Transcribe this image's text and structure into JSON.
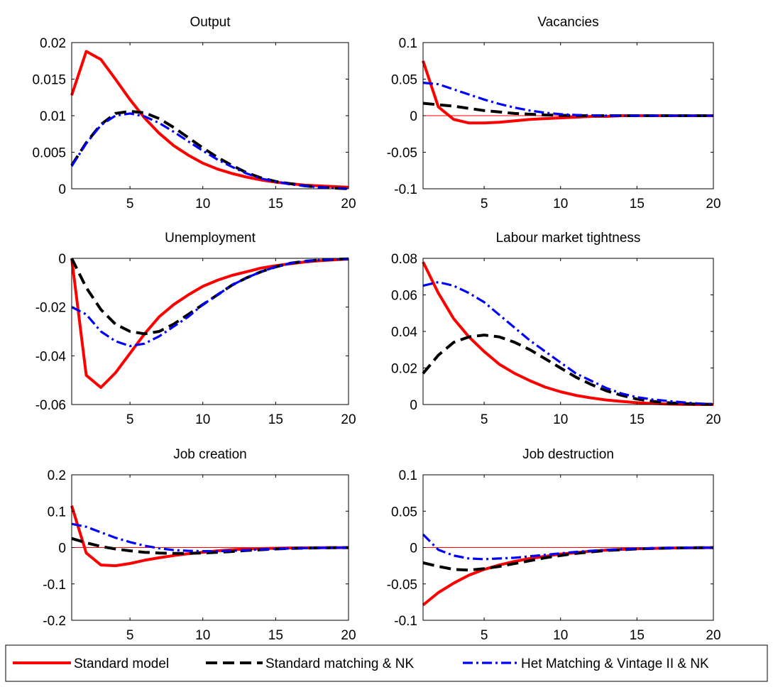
{
  "chart_data": [
    {
      "type": "line",
      "title": "Output",
      "xlim": [
        1,
        20
      ],
      "ylim": [
        0,
        0.02
      ],
      "xticks": [
        5,
        10,
        15,
        20
      ],
      "xtick_labels": [
        "5",
        "10",
        "15",
        "20"
      ],
      "yticks": [
        0,
        0.005,
        0.01,
        0.015,
        0.02
      ],
      "ytick_labels": [
        "0",
        "0.005",
        "0.01",
        "0.015",
        "0.02"
      ],
      "x": [
        1,
        2,
        3,
        4,
        5,
        6,
        7,
        8,
        9,
        10,
        11,
        12,
        13,
        14,
        15,
        16,
        17,
        18,
        19,
        20
      ],
      "series": [
        {
          "name": "Standard model",
          "values": [
            0.0128,
            0.0188,
            0.0177,
            0.015,
            0.0122,
            0.0097,
            0.0076,
            0.0059,
            0.0046,
            0.0035,
            0.0027,
            0.0021,
            0.0016,
            0.0012,
            0.0009,
            0.0007,
            0.0005,
            0.0004,
            0.0003,
            0.0002
          ]
        },
        {
          "name": "Standard matching & NK",
          "values": [
            0.0032,
            0.0063,
            0.0088,
            0.0103,
            0.0106,
            0.0104,
            0.0096,
            0.0084,
            0.007,
            0.0056,
            0.0043,
            0.0032,
            0.0022,
            0.0015,
            0.001,
            0.0007,
            0.0004,
            0.0002,
            0.0001,
            0.0
          ]
        },
        {
          "name": "Het Matching & Vintage II & NK",
          "values": [
            0.0031,
            0.0062,
            0.0087,
            0.01,
            0.0103,
            0.0099,
            0.009,
            0.0078,
            0.0065,
            0.0052,
            0.004,
            0.003,
            0.0021,
            0.0014,
            0.001,
            0.0006,
            0.0004,
            0.0002,
            0.0001,
            0.0
          ]
        }
      ]
    },
    {
      "type": "line",
      "title": "Vacancies",
      "xlim": [
        1,
        20
      ],
      "ylim": [
        -0.1,
        0.1
      ],
      "xticks": [
        5,
        10,
        15,
        20
      ],
      "xtick_labels": [
        "5",
        "10",
        "15",
        "20"
      ],
      "yticks": [
        -0.1,
        -0.05,
        0,
        0.05,
        0.1
      ],
      "ytick_labels": [
        "-0.1",
        "-0.05",
        "0",
        "0.05",
        "0.1"
      ],
      "x": [
        1,
        2,
        3,
        4,
        5,
        6,
        7,
        8,
        9,
        10,
        11,
        12,
        13,
        14,
        15,
        16,
        17,
        18,
        19,
        20
      ],
      "series": [
        {
          "name": "Standard model",
          "values": [
            0.075,
            0.012,
            -0.005,
            -0.01,
            -0.01,
            -0.009,
            -0.007,
            -0.005,
            -0.004,
            -0.003,
            -0.002,
            -0.001,
            -0.001,
            0,
            0,
            0,
            0,
            0,
            0,
            0
          ]
        },
        {
          "name": "Standard matching & NK",
          "values": [
            0.017,
            0.015,
            0.013,
            0.01,
            0.007,
            0.005,
            0.003,
            0.002,
            0.001,
            0.0005,
            0,
            0,
            0,
            0,
            0,
            0,
            0,
            0,
            0,
            0
          ]
        },
        {
          "name": "Het Matching & Vintage II & NK",
          "values": [
            0.045,
            0.043,
            0.036,
            0.029,
            0.022,
            0.016,
            0.011,
            0.007,
            0.004,
            0.002,
            0.001,
            0.0005,
            0,
            0,
            0,
            0,
            0,
            0,
            0,
            0
          ]
        }
      ]
    },
    {
      "type": "line",
      "title": "Unemployment",
      "xlim": [
        1,
        20
      ],
      "ylim": [
        -0.06,
        0
      ],
      "xticks": [
        5,
        10,
        15,
        20
      ],
      "xtick_labels": [
        "5",
        "10",
        "15",
        "20"
      ],
      "yticks": [
        -0.06,
        -0.04,
        -0.02,
        0
      ],
      "ytick_labels": [
        "-0.06",
        "-0.04",
        "-0.02",
        "0"
      ],
      "x": [
        1,
        2,
        3,
        4,
        5,
        6,
        7,
        8,
        9,
        10,
        11,
        12,
        13,
        14,
        15,
        16,
        17,
        18,
        19,
        20
      ],
      "series": [
        {
          "name": "Standard model",
          "values": [
            0,
            -0.048,
            -0.053,
            -0.047,
            -0.039,
            -0.031,
            -0.024,
            -0.019,
            -0.015,
            -0.0115,
            -0.009,
            -0.007,
            -0.0055,
            -0.004,
            -0.003,
            -0.0022,
            -0.0015,
            -0.001,
            -0.0006,
            -0.0003
          ]
        },
        {
          "name": "Standard matching & NK",
          "values": [
            0,
            -0.012,
            -0.021,
            -0.027,
            -0.03,
            -0.031,
            -0.03,
            -0.027,
            -0.023,
            -0.019,
            -0.015,
            -0.011,
            -0.008,
            -0.0055,
            -0.0035,
            -0.002,
            -0.0012,
            -0.0007,
            -0.0004,
            -0.0002
          ]
        },
        {
          "name": "Het Matching & Vintage II & NK",
          "values": [
            -0.02,
            -0.023,
            -0.03,
            -0.034,
            -0.036,
            -0.035,
            -0.032,
            -0.028,
            -0.024,
            -0.019,
            -0.015,
            -0.011,
            -0.008,
            -0.0055,
            -0.0035,
            -0.002,
            -0.0012,
            -0.0007,
            -0.0004,
            -0.0002
          ]
        }
      ]
    },
    {
      "type": "line",
      "title": "Labour market tightness",
      "xlim": [
        1,
        20
      ],
      "ylim": [
        0,
        0.08
      ],
      "xticks": [
        5,
        10,
        15,
        20
      ],
      "xtick_labels": [
        "5",
        "10",
        "15",
        "20"
      ],
      "yticks": [
        0,
        0.02,
        0.04,
        0.06,
        0.08
      ],
      "ytick_labels": [
        "0",
        "0.02",
        "0.04",
        "0.06",
        "0.08"
      ],
      "x": [
        1,
        2,
        3,
        4,
        5,
        6,
        7,
        8,
        9,
        10,
        11,
        12,
        13,
        14,
        15,
        16,
        17,
        18,
        19,
        20
      ],
      "series": [
        {
          "name": "Standard model",
          "values": [
            0.078,
            0.061,
            0.047,
            0.037,
            0.029,
            0.022,
            0.017,
            0.013,
            0.0095,
            0.007,
            0.005,
            0.0036,
            0.0025,
            0.0017,
            0.001,
            0.0006,
            0.0003,
            0.0001,
            0,
            0
          ]
        },
        {
          "name": "Standard matching & NK",
          "values": [
            0.017,
            0.027,
            0.034,
            0.037,
            0.038,
            0.037,
            0.034,
            0.03,
            0.025,
            0.02,
            0.015,
            0.011,
            0.0075,
            0.005,
            0.003,
            0.0018,
            0.001,
            0.0005,
            0.0002,
            0.0001
          ]
        },
        {
          "name": "Het Matching & Vintage II & NK",
          "values": [
            0.065,
            0.067,
            0.065,
            0.061,
            0.056,
            0.049,
            0.042,
            0.035,
            0.029,
            0.023,
            0.017,
            0.013,
            0.009,
            0.006,
            0.004,
            0.0028,
            0.002,
            0.0012,
            0.0006,
            0.0002
          ]
        }
      ]
    },
    {
      "type": "line",
      "title": "Job creation",
      "xlim": [
        1,
        20
      ],
      "ylim": [
        -0.2,
        0.2
      ],
      "xticks": [
        5,
        10,
        15,
        20
      ],
      "xtick_labels": [
        "5",
        "10",
        "15",
        "20"
      ],
      "yticks": [
        -0.2,
        -0.1,
        0,
        0.1,
        0.2
      ],
      "ytick_labels": [
        "-0.2",
        "-0.1",
        "0",
        "0.1",
        "0.2"
      ],
      "x": [
        1,
        2,
        3,
        4,
        5,
        6,
        7,
        8,
        9,
        10,
        11,
        12,
        13,
        14,
        15,
        16,
        17,
        18,
        19,
        20
      ],
      "series": [
        {
          "name": "Standard model",
          "values": [
            0.115,
            -0.015,
            -0.048,
            -0.05,
            -0.044,
            -0.035,
            -0.028,
            -0.022,
            -0.017,
            -0.013,
            -0.009,
            -0.006,
            -0.004,
            -0.003,
            -0.002,
            -0.0012,
            -0.0007,
            -0.0004,
            -0.0002,
            -0.0001
          ]
        },
        {
          "name": "Standard matching & NK",
          "values": [
            0.025,
            0.013,
            0.003,
            -0.004,
            -0.009,
            -0.013,
            -0.015,
            -0.016,
            -0.016,
            -0.015,
            -0.013,
            -0.011,
            -0.008,
            -0.006,
            -0.004,
            -0.0025,
            -0.0015,
            -0.001,
            -0.0005,
            -0.0002
          ]
        },
        {
          "name": "Het Matching & Vintage II & NK",
          "values": [
            0.065,
            0.057,
            0.042,
            0.027,
            0.015,
            0.005,
            -0.002,
            -0.007,
            -0.009,
            -0.01,
            -0.01,
            -0.009,
            -0.007,
            -0.005,
            -0.0035,
            -0.0025,
            -0.0015,
            -0.001,
            -0.0005,
            -0.0002
          ]
        }
      ]
    },
    {
      "type": "line",
      "title": "Job destruction",
      "xlim": [
        1,
        20
      ],
      "ylim": [
        -0.1,
        0.1
      ],
      "xticks": [
        5,
        10,
        15,
        20
      ],
      "xtick_labels": [
        "5",
        "10",
        "15",
        "20"
      ],
      "yticks": [
        -0.1,
        -0.05,
        0,
        0.05,
        0.1
      ],
      "ytick_labels": [
        "-0.1",
        "-0.05",
        "0",
        "0.05",
        "0.1"
      ],
      "x": [
        1,
        2,
        3,
        4,
        5,
        6,
        7,
        8,
        9,
        10,
        11,
        12,
        13,
        14,
        15,
        16,
        17,
        18,
        19,
        20
      ],
      "series": [
        {
          "name": "Standard model",
          "values": [
            -0.079,
            -0.062,
            -0.049,
            -0.038,
            -0.03,
            -0.024,
            -0.019,
            -0.015,
            -0.012,
            -0.009,
            -0.007,
            -0.005,
            -0.0035,
            -0.0025,
            -0.0018,
            -0.0012,
            -0.0008,
            -0.0005,
            -0.0003,
            -0.0001
          ]
        },
        {
          "name": "Standard matching & NK",
          "values": [
            -0.021,
            -0.026,
            -0.03,
            -0.031,
            -0.029,
            -0.026,
            -0.022,
            -0.018,
            -0.014,
            -0.011,
            -0.008,
            -0.006,
            -0.004,
            -0.003,
            -0.002,
            -0.0013,
            -0.0008,
            -0.0005,
            -0.0003,
            -0.0001
          ]
        },
        {
          "name": "Het Matching & Vintage II & NK",
          "values": [
            0.018,
            -0.003,
            -0.011,
            -0.015,
            -0.016,
            -0.015,
            -0.014,
            -0.012,
            -0.01,
            -0.008,
            -0.006,
            -0.0045,
            -0.0032,
            -0.0022,
            -0.0015,
            -0.001,
            -0.0006,
            -0.0004,
            -0.0002,
            -0.0001
          ]
        }
      ]
    }
  ],
  "legend": {
    "placement": "bottom",
    "entries": [
      {
        "label": "Standard model",
        "color": "#ff0000",
        "style": "solid"
      },
      {
        "label": "Standard matching & NK",
        "color": "#000000",
        "style": "dashed"
      },
      {
        "label": "Het Matching & Vintage II & NK",
        "color": "#0000ff",
        "style": "dashdot"
      }
    ]
  },
  "colors": {
    "standard_model": "#ff0000",
    "standard_matching": "#000000",
    "het_matching": "#0000ff",
    "zero_line": "#ff0000"
  }
}
